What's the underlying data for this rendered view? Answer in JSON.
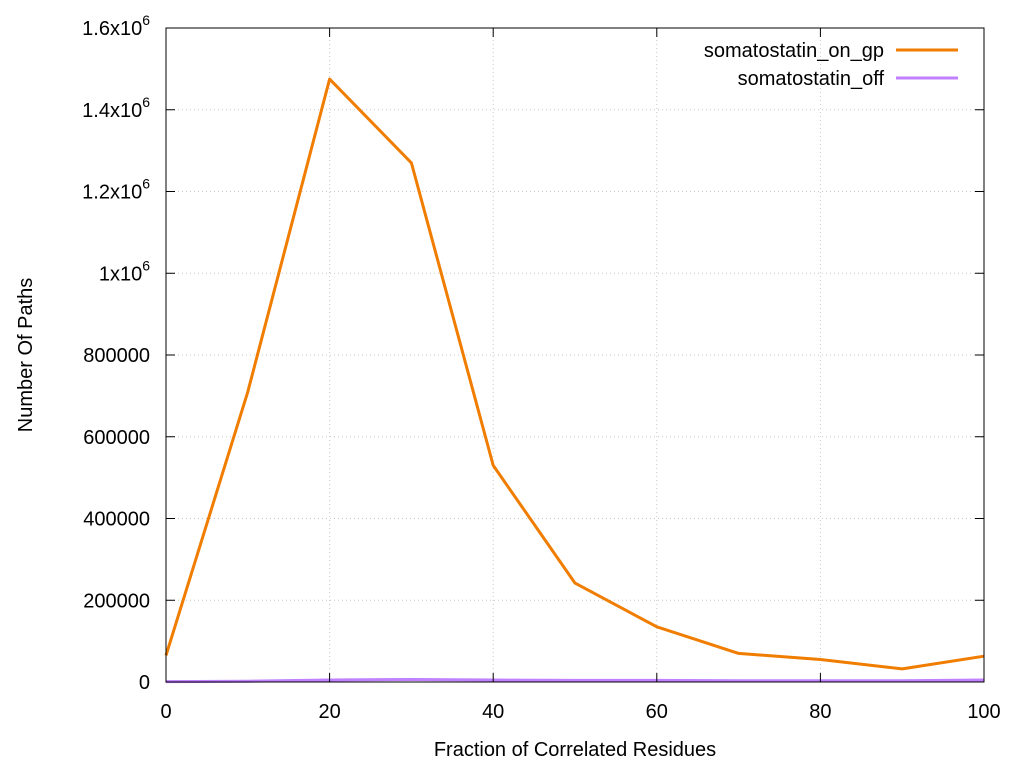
{
  "chart_data": {
    "type": "line",
    "title": "",
    "xlabel": "Fraction of Correlated Residues",
    "ylabel": "Number Of Paths",
    "xlim": [
      0,
      100
    ],
    "ylim": [
      0,
      1600000
    ],
    "grid": true,
    "legend_position": "top-right",
    "x": [
      0,
      10,
      20,
      30,
      40,
      50,
      60,
      70,
      80,
      90,
      100
    ],
    "x_ticks": [
      {
        "value": 0,
        "label": "0"
      },
      {
        "value": 20,
        "label": "20"
      },
      {
        "value": 40,
        "label": "40"
      },
      {
        "value": 60,
        "label": "60"
      },
      {
        "value": 80,
        "label": "80"
      },
      {
        "value": 100,
        "label": "100"
      }
    ],
    "y_ticks": [
      {
        "value": 0,
        "label": "0"
      },
      {
        "value": 200000,
        "label": "200000"
      },
      {
        "value": 400000,
        "label": "400000"
      },
      {
        "value": 600000,
        "label": "600000"
      },
      {
        "value": 800000,
        "label": "800000"
      },
      {
        "value": 1000000,
        "mantissa": "1x10",
        "exponent": "6"
      },
      {
        "value": 1200000,
        "mantissa": "1.2x10",
        "exponent": "6"
      },
      {
        "value": 1400000,
        "mantissa": "1.4x10",
        "exponent": "6"
      },
      {
        "value": 1600000,
        "mantissa": "1.6x10",
        "exponent": "6"
      }
    ],
    "series": [
      {
        "name": "somatostatin_on_gp",
        "color": "#f07d00",
        "values": [
          65000,
          710000,
          1475000,
          1270000,
          530000,
          242000,
          135000,
          70000,
          55000,
          32000,
          63000
        ]
      },
      {
        "name": "somatostatin_off",
        "color": "#c080ff",
        "values": [
          1000,
          2000,
          5000,
          6000,
          5000,
          4000,
          4000,
          3000,
          3000,
          3000,
          5000
        ]
      }
    ]
  }
}
